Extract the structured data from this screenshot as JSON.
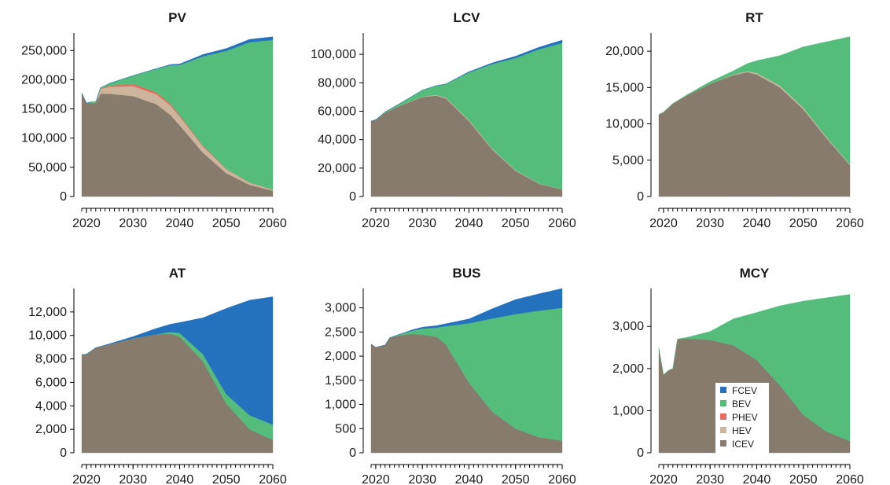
{
  "colors": {
    "FCEV": "#2471bd",
    "BEV": "#55bd7c",
    "PHEV": "#e96b5f",
    "HEV": "#cdb49c",
    "ICEV": "#867b6c"
  },
  "legend": {
    "placement": "inside MCY panel, bottom-center",
    "entries": [
      "FCEV",
      "BEV",
      "PHEV",
      "HEV",
      "ICEV"
    ]
  },
  "chart_data": [
    {
      "type": "area",
      "stacked": true,
      "title": "PV",
      "xlim": [
        2019,
        2060
      ],
      "ylim": [
        0,
        280000
      ],
      "xticks": [
        2020,
        2030,
        2040,
        2050,
        2060
      ],
      "xtick_labels": [
        "2020",
        "2030",
        "2040",
        "2050",
        "2060"
      ],
      "yticks": [
        0,
        50000,
        100000,
        150000,
        200000,
        250000
      ],
      "ytick_labels": [
        "0",
        "50,000",
        "100,000",
        "150,000",
        "200,000",
        "250,000"
      ],
      "x": [
        2019,
        2020,
        2021,
        2022,
        2023,
        2025,
        2030,
        2035,
        2038,
        2040,
        2045,
        2050,
        2055,
        2060
      ],
      "series": [
        {
          "name": "ICEV",
          "values": [
            177000,
            160000,
            160000,
            160000,
            176000,
            176000,
            172000,
            158000,
            140000,
            122000,
            75000,
            40000,
            20000,
            10000
          ]
        },
        {
          "name": "HEV",
          "values": [
            0,
            0,
            0,
            0,
            8000,
            12000,
            17000,
            17000,
            16000,
            15000,
            11000,
            7000,
            4000,
            2000
          ]
        },
        {
          "name": "PHEV",
          "values": [
            0,
            0,
            0,
            0,
            500,
            2000,
            4000,
            3500,
            3000,
            2500,
            1200,
            500,
            200,
            100
          ]
        },
        {
          "name": "BEV",
          "values": [
            0,
            0,
            2000,
            2000,
            1500,
            4000,
            14000,
            40000,
            66000,
            86000,
            153000,
            202000,
            240000,
            256000
          ]
        },
        {
          "name": "FCEV",
          "values": [
            0,
            0,
            0,
            0,
            0,
            0,
            0,
            500,
            1000,
            1500,
            3000,
            4000,
            5000,
            5500
          ]
        }
      ]
    },
    {
      "type": "area",
      "stacked": true,
      "title": "LCV",
      "xlim": [
        2019,
        2060
      ],
      "ylim": [
        0,
        115000
      ],
      "xticks": [
        2020,
        2030,
        2040,
        2050,
        2060
      ],
      "xtick_labels": [
        "2020",
        "2030",
        "2040",
        "2050",
        "2060"
      ],
      "yticks": [
        0,
        20000,
        40000,
        60000,
        80000,
        100000
      ],
      "ytick_labels": [
        "0",
        "20,000",
        "40,000",
        "60,000",
        "80,000",
        "100,000"
      ],
      "x": [
        2019,
        2020,
        2022,
        2025,
        2030,
        2033,
        2035,
        2040,
        2045,
        2050,
        2055,
        2060
      ],
      "series": [
        {
          "name": "ICEV",
          "values": [
            53000,
            54000,
            59000,
            63500,
            70000,
            71000,
            69000,
            53000,
            33000,
            18000,
            9000,
            5000
          ]
        },
        {
          "name": "HEV",
          "values": [
            0,
            0,
            0,
            100,
            300,
            500,
            600,
            800,
            700,
            500,
            300,
            200
          ]
        },
        {
          "name": "PHEV",
          "values": [
            0,
            0,
            0,
            0,
            0,
            0,
            0,
            0,
            0,
            0,
            0,
            0
          ]
        },
        {
          "name": "BEV",
          "values": [
            0,
            0,
            500,
            1500,
            4500,
            6500,
            9500,
            33500,
            59500,
            79000,
            94200,
            102800
          ]
        },
        {
          "name": "FCEV",
          "values": [
            0,
            0,
            0,
            0,
            0,
            0,
            0,
            500,
            800,
            1200,
            1500,
            2000
          ]
        }
      ]
    },
    {
      "type": "area",
      "stacked": true,
      "title": "RT",
      "xlim": [
        2019,
        2060
      ],
      "ylim": [
        0,
        22500
      ],
      "xticks": [
        2020,
        2030,
        2040,
        2050,
        2060
      ],
      "xtick_labels": [
        "2020",
        "2030",
        "2040",
        "2050",
        "2060"
      ],
      "yticks": [
        0,
        5000,
        10000,
        15000,
        20000
      ],
      "ytick_labels": [
        "0",
        "5,000",
        "10,000",
        "15,000",
        "20,000"
      ],
      "x": [
        2019,
        2020,
        2022,
        2025,
        2030,
        2035,
        2038,
        2040,
        2045,
        2050,
        2055,
        2060
      ],
      "series": [
        {
          "name": "ICEV",
          "values": [
            11300,
            11600,
            12800,
            13900,
            15500,
            16700,
            17100,
            16800,
            15000,
            12000,
            8000,
            4300
          ]
        },
        {
          "name": "HEV",
          "values": [
            0,
            0,
            0,
            0,
            0,
            100,
            150,
            200,
            250,
            220,
            180,
            120
          ]
        },
        {
          "name": "PHEV",
          "values": [
            0,
            0,
            0,
            0,
            0,
            0,
            0,
            0,
            0,
            0,
            0,
            0
          ]
        },
        {
          "name": "BEV",
          "values": [
            0,
            0,
            0,
            100,
            300,
            500,
            1050,
            1700,
            4150,
            8380,
            13120,
            17580
          ]
        },
        {
          "name": "FCEV",
          "values": [
            0,
            0,
            0,
            0,
            0,
            0,
            0,
            0,
            0,
            0,
            0,
            0
          ]
        }
      ]
    },
    {
      "type": "area",
      "stacked": true,
      "title": "AT",
      "xlim": [
        2019,
        2060
      ],
      "ylim": [
        0,
        14000
      ],
      "xticks": [
        2020,
        2030,
        2040,
        2050,
        2060
      ],
      "xtick_labels": [
        "2020",
        "2030",
        "2040",
        "2050",
        "2060"
      ],
      "yticks": [
        0,
        2000,
        4000,
        6000,
        8000,
        10000,
        12000
      ],
      "ytick_labels": [
        "0",
        "2,000",
        "4,000",
        "6,000",
        "8,000",
        "10,000",
        "12,000"
      ],
      "x": [
        2019,
        2020,
        2022,
        2025,
        2030,
        2035,
        2038,
        2040,
        2045,
        2050,
        2055,
        2060
      ],
      "series": [
        {
          "name": "ICEV",
          "values": [
            8350,
            8400,
            8950,
            9250,
            9750,
            10100,
            10150,
            9900,
            7800,
            4200,
            2000,
            1100
          ]
        },
        {
          "name": "HEV",
          "values": [
            0,
            0,
            0,
            0,
            0,
            0,
            0,
            0,
            0,
            0,
            0,
            0
          ]
        },
        {
          "name": "PHEV",
          "values": [
            0,
            0,
            0,
            0,
            0,
            0,
            0,
            0,
            0,
            0,
            0,
            0
          ]
        },
        {
          "name": "BEV",
          "values": [
            0,
            0,
            0,
            0,
            0,
            0,
            150,
            300,
            600,
            800,
            1200,
            1300
          ]
        },
        {
          "name": "FCEV",
          "values": [
            0,
            0,
            0,
            50,
            150,
            500,
            650,
            900,
            3100,
            7300,
            9800,
            10900
          ]
        }
      ]
    },
    {
      "type": "area",
      "stacked": true,
      "title": "BUS",
      "xlim": [
        2019,
        2060
      ],
      "ylim": [
        0,
        3400
      ],
      "xticks": [
        2020,
        2030,
        2040,
        2050,
        2060
      ],
      "xtick_labels": [
        "2020",
        "2030",
        "2040",
        "2050",
        "2060"
      ],
      "yticks": [
        0,
        500,
        1000,
        1500,
        2000,
        2500,
        3000
      ],
      "ytick_labels": [
        "0",
        "500",
        "1,000",
        "1,500",
        "2,000",
        "2,500",
        "3,000"
      ],
      "x": [
        2019,
        2020,
        2022,
        2023,
        2025,
        2028,
        2030,
        2033,
        2035,
        2040,
        2045,
        2050,
        2055,
        2060
      ],
      "series": [
        {
          "name": "ICEV",
          "values": [
            2250,
            2180,
            2230,
            2380,
            2430,
            2460,
            2440,
            2400,
            2250,
            1450,
            850,
            500,
            320,
            250
          ]
        },
        {
          "name": "HEV",
          "values": [
            0,
            0,
            0,
            0,
            0,
            0,
            0,
            0,
            0,
            0,
            0,
            0,
            0,
            0
          ]
        },
        {
          "name": "PHEV",
          "values": [
            0,
            0,
            0,
            0,
            0,
            0,
            0,
            0,
            0,
            0,
            0,
            0,
            0,
            0
          ]
        },
        {
          "name": "BEV",
          "values": [
            0,
            0,
            0,
            0,
            20,
            70,
            130,
            190,
            370,
            1230,
            1930,
            2370,
            2620,
            2750
          ]
        },
        {
          "name": "FCEV",
          "values": [
            0,
            0,
            0,
            0,
            0,
            20,
            30,
            40,
            50,
            90,
            200,
            300,
            350,
            400
          ]
        }
      ]
    },
    {
      "type": "area",
      "stacked": true,
      "title": "MCY",
      "xlim": [
        2019,
        2060
      ],
      "ylim": [
        0,
        3900
      ],
      "xticks": [
        2020,
        2030,
        2040,
        2050,
        2060
      ],
      "xtick_labels": [
        "2020",
        "2030",
        "2040",
        "2050",
        "2060"
      ],
      "yticks": [
        0,
        1000,
        2000,
        3000
      ],
      "ytick_labels": [
        "0",
        "1,000",
        "2,000",
        "3,000"
      ],
      "x": [
        2019,
        2020,
        2021,
        2022,
        2023,
        2025,
        2030,
        2035,
        2040,
        2045,
        2050,
        2055,
        2060
      ],
      "series": [
        {
          "name": "ICEV",
          "values": [
            2480,
            1850,
            1950,
            2000,
            2700,
            2710,
            2680,
            2550,
            2200,
            1600,
            900,
            500,
            280
          ]
        },
        {
          "name": "HEV",
          "values": [
            0,
            0,
            0,
            0,
            0,
            0,
            0,
            0,
            0,
            0,
            0,
            0,
            0
          ]
        },
        {
          "name": "PHEV",
          "values": [
            0,
            0,
            0,
            0,
            0,
            0,
            0,
            0,
            0,
            0,
            0,
            0,
            0
          ]
        },
        {
          "name": "BEV",
          "values": [
            0,
            0,
            0,
            0,
            0,
            30,
            200,
            630,
            1130,
            1890,
            2700,
            3180,
            3480
          ]
        },
        {
          "name": "FCEV",
          "values": [
            0,
            0,
            0,
            0,
            0,
            0,
            0,
            0,
            0,
            0,
            0,
            0,
            0
          ]
        }
      ]
    }
  ]
}
